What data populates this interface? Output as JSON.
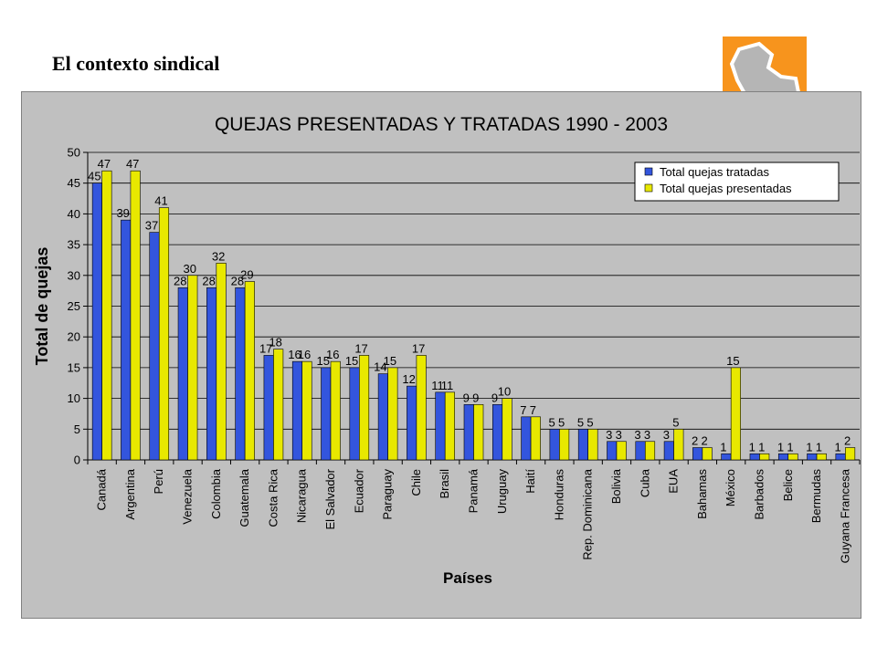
{
  "slide": {
    "title": "El contexto sindical"
  },
  "colors": {
    "panel_bg": "#c0c0c0",
    "logo_bg": "#f7941d"
  },
  "logo": {
    "icon": "paraguay-map-icon"
  },
  "chart_data": {
    "type": "bar",
    "title": "QUEJAS PRESENTADAS Y TRATADAS 1990 - 2003",
    "xlabel": "Países",
    "ylabel": "Total de quejas",
    "ylim": [
      0,
      50
    ],
    "yticks": [
      0,
      5,
      10,
      15,
      20,
      25,
      30,
      35,
      40,
      45,
      50
    ],
    "grid": true,
    "legend_position": "top-right",
    "categories": [
      "Canadá",
      "Argentina",
      "Perú",
      "Venezuela",
      "Colombia",
      "Guatemala",
      "Costa Rica",
      "Nicaragua",
      "El Salvador",
      "Ecuador",
      "Paraguay",
      "Chile",
      "Brasil",
      "Panamá",
      "Uruguay",
      "Haití",
      "Honduras",
      "Rep. Dominicana",
      "Bolivia",
      "Cuba",
      "EUA",
      "Bahamas",
      "México",
      "Barbados",
      "Belice",
      "Bermudas",
      "Guyana Francesa"
    ],
    "series": [
      {
        "name": "Total quejas tratadas",
        "color": "#3355dd",
        "values": [
          45,
          39,
          37,
          28,
          28,
          28,
          17,
          16,
          15,
          15,
          14,
          12,
          11,
          9,
          9,
          7,
          5,
          5,
          3,
          3,
          3,
          2,
          1,
          1,
          1,
          1,
          1
        ]
      },
      {
        "name": "Total quejas presentadas",
        "color": "#e8e800",
        "values": [
          47,
          47,
          41,
          30,
          32,
          29,
          18,
          16,
          16,
          17,
          15,
          17,
          11,
          9,
          10,
          7,
          5,
          5,
          3,
          3,
          5,
          2,
          15,
          1,
          1,
          1,
          2
        ]
      }
    ]
  }
}
